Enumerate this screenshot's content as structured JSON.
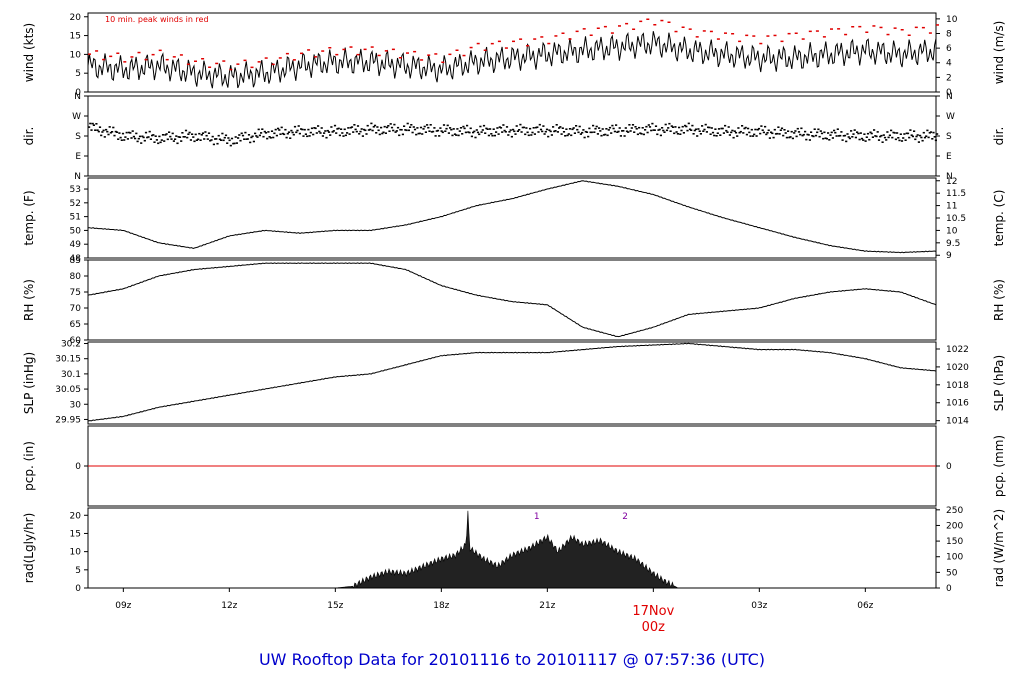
{
  "title": "UW Rooftop Data for 20101116  to  20101117 @ 07:57:36  (UTC)",
  "chart_data": {
    "type": "line",
    "x_axis": {
      "unit": "hours (UTC) from 2010-11-16 00z",
      "range": [
        8.0,
        32.0
      ],
      "ticks": [
        {
          "x": 9,
          "label": "09z"
        },
        {
          "x": 12,
          "label": "12z"
        },
        {
          "x": 15,
          "label": "15z"
        },
        {
          "x": 18,
          "label": "18z"
        },
        {
          "x": 21,
          "label": "21z"
        },
        {
          "x": 24,
          "label": "00z"
        },
        {
          "x": 27,
          "label": "03z"
        },
        {
          "x": 30,
          "label": "06z"
        }
      ],
      "date_marker": {
        "x": 24,
        "date_label": "17Nov",
        "time_label": "00z"
      }
    },
    "panels": [
      {
        "id": "wind",
        "ylabel": "wind (kts)",
        "ylabel_right": "wind (m/s)",
        "ylim": [
          0,
          21
        ],
        "yticks": [
          0,
          5,
          10,
          15,
          20
        ],
        "right_ticks": [
          {
            "v": 0,
            "label": "0"
          },
          {
            "v": 3.89,
            "label": "2"
          },
          {
            "v": 7.78,
            "label": "4"
          },
          {
            "v": 11.66,
            "label": "6"
          },
          {
            "v": 15.55,
            "label": "8"
          },
          {
            "v": 19.44,
            "label": "10"
          }
        ],
        "annotation": "10 min. peak winds in red",
        "series": [
          {
            "name": "wind speed",
            "x": [
              8,
              9,
              10,
              11,
              12,
              13,
              14,
              15,
              16,
              17,
              18,
              19,
              20,
              21,
              22,
              23,
              24,
              25,
              26,
              27,
              28,
              29,
              30,
              31,
              32
            ],
            "y": [
              7,
              6,
              7,
              5,
              4,
              5,
              7,
              8,
              8,
              7,
              6,
              8,
              9,
              10,
              11,
              12,
              13,
              11,
              10,
              9,
              9,
              10,
              11,
              10,
              11
            ]
          },
          {
            "name": "10 min. peak winds",
            "x": [
              8,
              9,
              10,
              11,
              12,
              13,
              14,
              15,
              16,
              17,
              18,
              19,
              20,
              21,
              22,
              23,
              24,
              25,
              26,
              27,
              28,
              29,
              30,
              31,
              32
            ],
            "y": [
              10,
              9,
              10,
              8,
              7,
              8,
              10,
              11,
              11,
              10,
              9,
              12,
              13,
              14,
              16,
              17,
              19,
              16,
              15,
              14,
              15,
              16,
              17,
              16,
              17
            ]
          }
        ]
      },
      {
        "id": "dir",
        "ylabel": "dir.",
        "ylabel_right": "dir.",
        "ylim": [
          0,
          360
        ],
        "yticks_labeled": [
          {
            "v": 0,
            "label": "N"
          },
          {
            "v": 90,
            "label": "E"
          },
          {
            "v": 180,
            "label": "S"
          },
          {
            "v": 270,
            "label": "W"
          },
          {
            "v": 360,
            "label": "N"
          }
        ],
        "series": [
          {
            "name": "wind direction",
            "x": [
              8,
              9,
              10,
              11,
              12,
              13,
              14,
              15,
              16,
              17,
              18,
              19,
              20,
              21,
              22,
              23,
              24,
              25,
              26,
              27,
              28,
              29,
              30,
              31,
              32
            ],
            "y": [
              220,
              180,
              170,
              180,
              160,
              190,
              200,
              200,
              210,
              210,
              205,
              200,
              205,
              205,
              200,
              205,
              210,
              210,
              200,
              200,
              190,
              185,
              180,
              180,
              180
            ]
          }
        ]
      },
      {
        "id": "temp",
        "ylabel": "temp. (F)",
        "ylabel_right": "temp. (C)",
        "ylim": [
          48,
          53.8
        ],
        "yticks": [
          48,
          49,
          50,
          51,
          52,
          53
        ],
        "right_ticks": [
          {
            "v": 48.2,
            "label": "9"
          },
          {
            "v": 49.1,
            "label": "9.5"
          },
          {
            "v": 50.0,
            "label": "10"
          },
          {
            "v": 50.9,
            "label": "10.5"
          },
          {
            "v": 51.8,
            "label": "11"
          },
          {
            "v": 52.7,
            "label": "11.5"
          },
          {
            "v": 53.6,
            "label": "12"
          }
        ],
        "series": [
          {
            "name": "temperature",
            "x": [
              8,
              9,
              10,
              11,
              12,
              13,
              14,
              15,
              16,
              17,
              18,
              19,
              20,
              21,
              22,
              23,
              24,
              25,
              26,
              27,
              28,
              29,
              30,
              31,
              32
            ],
            "y": [
              50.2,
              50.0,
              49.1,
              48.7,
              49.6,
              50.0,
              49.8,
              50.0,
              50.0,
              50.4,
              51.0,
              51.8,
              52.3,
              53.0,
              53.6,
              53.2,
              52.6,
              51.7,
              50.9,
              50.2,
              49.5,
              48.9,
              48.5,
              48.4,
              48.5
            ]
          }
        ]
      },
      {
        "id": "rh",
        "ylabel": "RH (%)",
        "ylabel_right": "RH (%)",
        "ylim": [
          60,
          85
        ],
        "yticks": [
          60,
          65,
          70,
          75,
          80,
          85
        ],
        "series": [
          {
            "name": "relative humidity",
            "x": [
              8,
              9,
              10,
              11,
              12,
              13,
              14,
              15,
              16,
              17,
              18,
              19,
              20,
              21,
              22,
              23,
              24,
              25,
              26,
              27,
              28,
              29,
              30,
              31,
              32
            ],
            "y": [
              74,
              76,
              80,
              82,
              83,
              84,
              84,
              84,
              84,
              82,
              77,
              74,
              72,
              71,
              64,
              61,
              64,
              68,
              69,
              70,
              73,
              75,
              76,
              75,
              71
            ]
          }
        ]
      },
      {
        "id": "slp",
        "ylabel": "SLP (inHg)",
        "ylabel_right": "SLP (hPa)",
        "ylim": [
          29.935,
          30.205
        ],
        "yticks": [
          29.95,
          30.0,
          30.05,
          30.1,
          30.15,
          30.2
        ],
        "right_ticks": [
          {
            "v": 29.946,
            "label": "1014"
          },
          {
            "v": 30.005,
            "label": "1016"
          },
          {
            "v": 30.064,
            "label": "1018"
          },
          {
            "v": 30.123,
            "label": "1020"
          },
          {
            "v": 30.182,
            "label": "1022"
          }
        ],
        "series": [
          {
            "name": "sea level pressure",
            "x": [
              8,
              9,
              10,
              11,
              12,
              13,
              14,
              15,
              16,
              17,
              18,
              19,
              20,
              21,
              22,
              23,
              24,
              25,
              26,
              27,
              28,
              29,
              30,
              31,
              32
            ],
            "y": [
              29.945,
              29.96,
              29.99,
              30.01,
              30.03,
              30.05,
              30.07,
              30.09,
              30.1,
              30.13,
              30.16,
              30.17,
              30.17,
              30.17,
              30.18,
              30.19,
              30.195,
              30.2,
              30.19,
              30.18,
              30.18,
              30.17,
              30.15,
              30.12,
              30.11
            ]
          }
        ]
      },
      {
        "id": "pcp",
        "ylabel": "pcp. (in)",
        "ylabel_right": "pcp. (mm)",
        "ylim": [
          -1,
          1
        ],
        "yticks": [
          0
        ],
        "right_ticks": [
          {
            "v": 0,
            "label": "0"
          }
        ],
        "series": [
          {
            "name": "precipitation",
            "x": [
              8,
              32
            ],
            "y": [
              0,
              0
            ]
          }
        ]
      },
      {
        "id": "rad",
        "ylabel": "rad(Lgly/hr)",
        "ylabel_right": "rad (W/m^2)",
        "ylim": [
          0,
          22
        ],
        "yticks": [
          0,
          5,
          10,
          15,
          20
        ],
        "right_ticks": [
          {
            "v": 0,
            "label": "0"
          },
          {
            "v": 4.3,
            "label": "50"
          },
          {
            "v": 8.6,
            "label": "100"
          },
          {
            "v": 12.9,
            "label": "150"
          },
          {
            "v": 17.2,
            "label": "200"
          },
          {
            "v": 21.5,
            "label": "250"
          }
        ],
        "markers": [
          {
            "x": 20.7,
            "label": "1"
          },
          {
            "x": 23.2,
            "label": "2"
          }
        ],
        "series": [
          {
            "name": "solar radiation",
            "x": [
              15.0,
              15.5,
              16.0,
              16.5,
              17.0,
              17.5,
              18.0,
              18.4,
              18.7,
              18.75,
              18.8,
              19.2,
              19.6,
              20.0,
              20.5,
              21.0,
              21.3,
              21.7,
              22.0,
              22.5,
              23.0,
              23.5,
              24.0,
              24.3,
              24.7
            ],
            "y": [
              0,
              0.5,
              3,
              4.5,
              4,
              6,
              8,
              9,
              12,
              21,
              11,
              8,
              6,
              9,
              11,
              14,
              10,
              14,
              12,
              13,
              10,
              8,
              4,
              2,
              0
            ]
          }
        ]
      }
    ]
  }
}
